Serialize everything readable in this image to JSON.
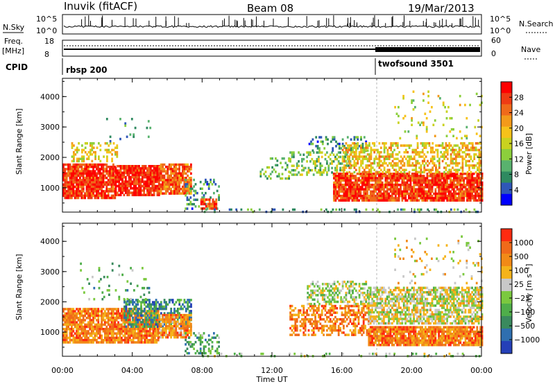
{
  "header": {
    "station": "Inuvik (fitACF)",
    "beam": "Beam 08",
    "date": "19/Mar/2013"
  },
  "top_panels": {
    "nsky_label": "N.Sky",
    "nsearch_label": "N.Search",
    "nsky_ticks": [
      "10^5",
      "10^0"
    ],
    "freq_label_1": "Freq.",
    "freq_label_2": "[MHz]",
    "freq_ticks": [
      "18",
      "8"
    ],
    "nave_label": "Nave",
    "nave_ticks": [
      "60",
      "0"
    ],
    "cpid_label": "CPID",
    "cpid_programs": [
      {
        "name": "rbsp 200",
        "start_hour": 0
      },
      {
        "name": "twofsound 3501",
        "start_hour": 18
      }
    ]
  },
  "colors": {
    "power_scale": [
      "#0000ff",
      "#2f57b8",
      "#2f8a60",
      "#59b26e",
      "#8ccf3c",
      "#c9d21f",
      "#f6c21a",
      "#f39a1a",
      "#f06a1a",
      "#ef3b14",
      "#ff0000"
    ],
    "velocity_scale": [
      "#2540b8",
      "#2f6fb0",
      "#3a8a5e",
      "#4fae4a",
      "#7bc93f",
      "#c8c8c8",
      "#f5b31a",
      "#f28a17",
      "#f06a1a",
      "#ff2b10"
    ]
  },
  "chart_data": [
    {
      "type": "heatmap",
      "name": "power",
      "ylabel": "Slant Range [km]",
      "colorbar_label": "Power [dB]",
      "colorbar_ticks": [
        "28",
        "24",
        "20",
        "16",
        "12",
        "8",
        "4"
      ],
      "yticks": [
        "4000",
        "3000",
        "2000",
        "1000"
      ],
      "ylim": [
        200,
        4600
      ],
      "xlim": [
        0,
        24
      ],
      "bands": [
        {
          "t0": 0.0,
          "t1": 3.0,
          "r0": 700,
          "r1": 1800,
          "level": 0.88,
          "density": 0.9
        },
        {
          "t0": 3.0,
          "t1": 5.5,
          "r0": 800,
          "r1": 1750,
          "level": 0.9,
          "density": 0.9
        },
        {
          "t0": 5.5,
          "t1": 7.4,
          "r0": 800,
          "r1": 1800,
          "level": 0.8,
          "density": 0.85
        },
        {
          "t0": 0.5,
          "t1": 3.2,
          "r0": 1900,
          "r1": 2500,
          "level": 0.55,
          "density": 0.35
        },
        {
          "t0": 2.5,
          "t1": 5.0,
          "r0": 2500,
          "r1": 3300,
          "level": 0.25,
          "density": 0.08
        },
        {
          "t0": 7.0,
          "t1": 9.0,
          "r0": 300,
          "r1": 1300,
          "level": 0.25,
          "density": 0.22
        },
        {
          "t0": 7.9,
          "t1": 8.8,
          "r0": 300,
          "r1": 650,
          "level": 0.85,
          "density": 0.75
        },
        {
          "t0": 11.3,
          "t1": 13.0,
          "r0": 1300,
          "r1": 2000,
          "level": 0.35,
          "density": 0.25
        },
        {
          "t0": 13.0,
          "t1": 16.5,
          "r0": 1400,
          "r1": 2200,
          "level": 0.4,
          "density": 0.35
        },
        {
          "t0": 14.0,
          "t1": 17.5,
          "r0": 2200,
          "r1": 2700,
          "level": 0.25,
          "density": 0.3
        },
        {
          "t0": 15.5,
          "t1": 24.0,
          "r0": 600,
          "r1": 1500,
          "level": 0.86,
          "density": 0.88
        },
        {
          "t0": 16.0,
          "t1": 24.0,
          "r0": 1500,
          "r1": 2500,
          "level": 0.6,
          "density": 0.5
        },
        {
          "t0": 19.0,
          "t1": 24.0,
          "r0": 2600,
          "r1": 4200,
          "level": 0.5,
          "density": 0.06
        },
        {
          "t0": 8.0,
          "t1": 24.0,
          "r0": 200,
          "r1": 320,
          "level": 0.3,
          "density": 0.18
        }
      ]
    },
    {
      "type": "heatmap",
      "name": "velocity",
      "ylabel": "Slant Range [km]",
      "colorbar_label": "Velocity [m s⁻¹]",
      "colorbar_ticks": [
        "1000",
        "500",
        "100",
        "25",
        "−25",
        "−100",
        "−500",
        "−1000"
      ],
      "yticks": [
        "4000",
        "3000",
        "2000",
        "1000"
      ],
      "ylim": [
        200,
        4600
      ],
      "xlim": [
        0,
        24
      ],
      "xticks": [
        "00:00",
        "04:00",
        "08:00",
        "12:00",
        "16:00",
        "20:00",
        "00:00"
      ],
      "xlabel": "Time UT",
      "bands": [
        {
          "t0": 0.0,
          "t1": 5.5,
          "r0": 700,
          "r1": 1800,
          "level": 0.78,
          "density": 0.85
        },
        {
          "t0": 3.5,
          "t1": 7.4,
          "r0": 1200,
          "r1": 2100,
          "level": 0.25,
          "density": 0.6
        },
        {
          "t0": 5.5,
          "t1": 7.4,
          "r0": 800,
          "r1": 1600,
          "level": 0.75,
          "density": 0.8
        },
        {
          "t0": 7.0,
          "t1": 9.0,
          "r0": 300,
          "r1": 1000,
          "level": 0.35,
          "density": 0.4
        },
        {
          "t0": 13.0,
          "t1": 17.5,
          "r0": 900,
          "r1": 1900,
          "level": 0.78,
          "density": 0.5
        },
        {
          "t0": 14.0,
          "t1": 17.5,
          "r0": 1900,
          "r1": 2700,
          "level": 0.5,
          "density": 0.45
        },
        {
          "t0": 17.5,
          "t1": 24.0,
          "r0": 600,
          "r1": 1200,
          "level": 0.8,
          "density": 0.9
        },
        {
          "t0": 17.5,
          "t1": 24.0,
          "r0": 1300,
          "r1": 2500,
          "level": 0.55,
          "density": 0.7
        },
        {
          "t0": 19.0,
          "t1": 24.0,
          "r0": 2600,
          "r1": 4200,
          "level": 0.58,
          "density": 0.07
        },
        {
          "t0": 1.0,
          "t1": 5.0,
          "r0": 2000,
          "r1": 3300,
          "level": 0.35,
          "density": 0.08
        },
        {
          "t0": 8.0,
          "t1": 24.0,
          "r0": 200,
          "r1": 320,
          "level": 0.5,
          "density": 0.15
        }
      ]
    }
  ]
}
